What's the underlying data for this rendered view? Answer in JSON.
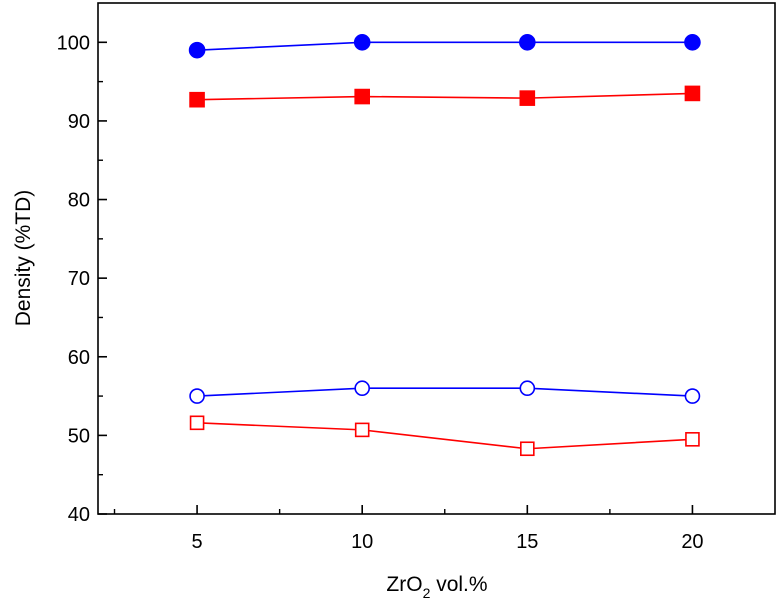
{
  "chart_data": {
    "type": "line",
    "title": "",
    "xlabel": {
      "main": "ZrO",
      "subscript": "2",
      "suffix": " vol.%"
    },
    "ylabel": "Density (%TD)",
    "xlim": [
      2,
      22.5
    ],
    "ylim": [
      40,
      105
    ],
    "grid": false,
    "legend": "none",
    "xticks": [
      5,
      10,
      15,
      20
    ],
    "xtick_labels": [
      "5",
      "10",
      "15",
      "20"
    ],
    "yticks": [
      40,
      50,
      60,
      70,
      80,
      90,
      100
    ],
    "ytick_labels": [
      "40",
      "50",
      "60",
      "70",
      "80",
      "90",
      "100"
    ],
    "x": [
      5,
      10,
      15,
      20
    ],
    "series": [
      {
        "name": "series-filled-circle",
        "color": "#0000ff",
        "marker": "circle",
        "filled": true,
        "values": [
          99.0,
          100.0,
          100.0,
          100.0
        ]
      },
      {
        "name": "series-filled-square",
        "color": "#ff0000",
        "marker": "square",
        "filled": true,
        "values": [
          92.7,
          93.1,
          92.9,
          93.5
        ]
      },
      {
        "name": "series-open-circle",
        "color": "#0000ff",
        "marker": "circle",
        "filled": false,
        "values": [
          55.0,
          56.0,
          56.0,
          55.0
        ]
      },
      {
        "name": "series-open-square",
        "color": "#ff0000",
        "marker": "square",
        "filled": false,
        "values": [
          51.6,
          50.7,
          48.3,
          49.5
        ]
      }
    ]
  }
}
